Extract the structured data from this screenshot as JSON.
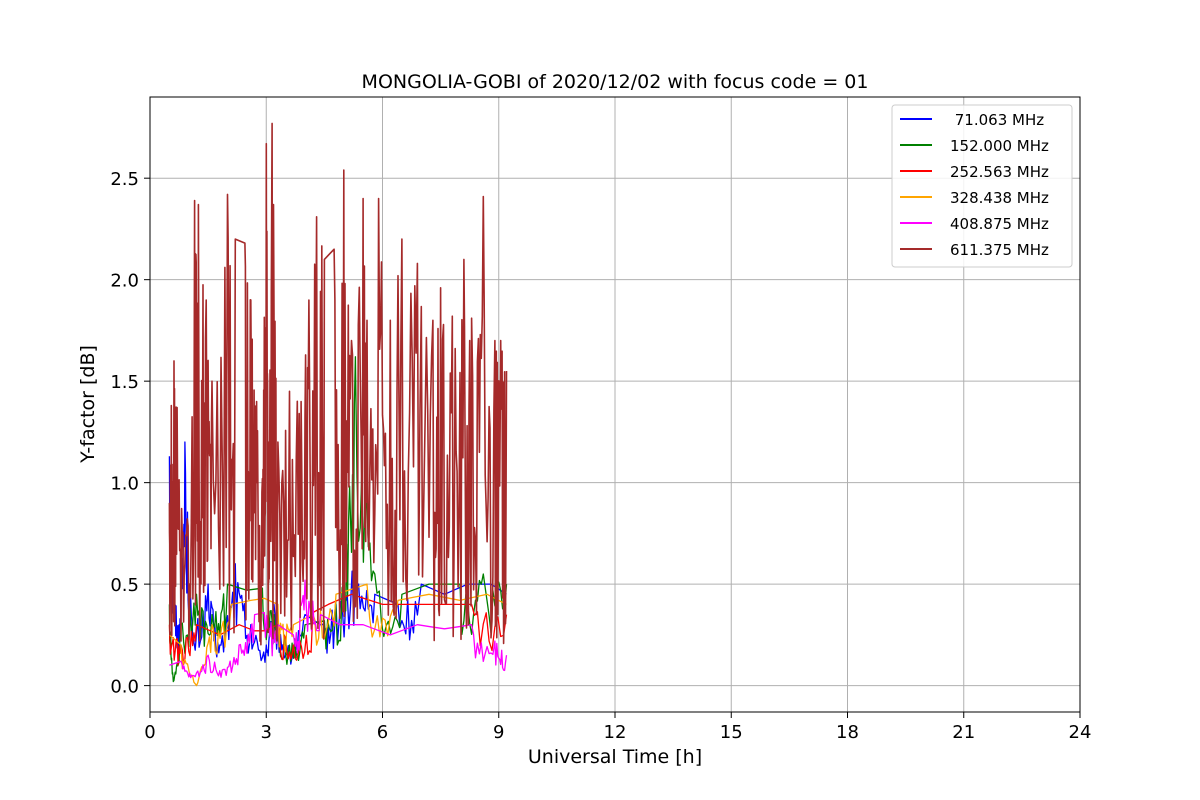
{
  "chart_data": {
    "type": "line",
    "title": "MONGOLIA-GOBI of 2020/12/02 with focus code = 01",
    "xlabel": "Universal Time [h]",
    "ylabel": "Y-factor [dB]",
    "xlim": [
      0,
      24
    ],
    "ylim": [
      -0.13,
      2.9
    ],
    "xticks": [
      0,
      3,
      6,
      9,
      12,
      15,
      18,
      21,
      24
    ],
    "yticks": [
      0.0,
      0.5,
      1.0,
      1.5,
      2.0,
      2.5
    ],
    "xtick_labels": [
      "0",
      "3",
      "6",
      "9",
      "12",
      "15",
      "18",
      "21",
      "24"
    ],
    "ytick_labels": [
      "0.0",
      "0.5",
      "1.0",
      "1.5",
      "2.0",
      "2.5"
    ],
    "grid": true,
    "legend_position": "top-right",
    "series": [
      {
        "name": " 71.063 MHz",
        "color": "#0000ff",
        "points": [
          [
            0.5,
            1.13
          ],
          [
            0.62,
            0.5
          ],
          [
            0.75,
            0.3
          ],
          [
            0.9,
            1.2
          ],
          [
            1.1,
            0.25
          ],
          [
            1.5,
            0.5
          ],
          [
            1.8,
            0.2
          ],
          [
            2.2,
            0.6
          ],
          [
            2.6,
            0.3
          ],
          [
            3.0,
            0.2
          ],
          [
            3.2,
            0.4
          ],
          [
            3.6,
            0.18
          ],
          [
            4.0,
            0.35
          ],
          [
            4.4,
            0.3
          ],
          [
            4.8,
            0.4
          ],
          [
            5.3,
            0.6
          ],
          [
            5.8,
            0.45
          ],
          [
            6.4,
            0.4
          ],
          [
            7.0,
            0.5
          ],
          [
            7.6,
            0.45
          ],
          [
            8.2,
            0.5
          ],
          [
            8.8,
            0.5
          ],
          [
            9.2,
            0.45
          ]
        ]
      },
      {
        "name": "152.000 MHz",
        "color": "#008000",
        "points": [
          [
            0.5,
            0.4
          ],
          [
            0.6,
            0.02
          ],
          [
            0.8,
            0.3
          ],
          [
            1.2,
            0.45
          ],
          [
            1.6,
            0.35
          ],
          [
            2.0,
            0.5
          ],
          [
            2.5,
            0.47
          ],
          [
            2.9,
            0.48
          ],
          [
            3.2,
            0.35
          ],
          [
            3.6,
            0.2
          ],
          [
            4.0,
            0.3
          ],
          [
            4.5,
            0.32
          ],
          [
            5.0,
            0.5
          ],
          [
            5.3,
            1.62
          ],
          [
            5.8,
            0.55
          ],
          [
            6.5,
            0.45
          ],
          [
            7.2,
            0.5
          ],
          [
            8.0,
            0.5
          ],
          [
            8.6,
            0.55
          ],
          [
            9.2,
            0.5
          ]
        ]
      },
      {
        "name": "252.563 MHz",
        "color": "#ff0000",
        "points": [
          [
            0.5,
            0.3
          ],
          [
            0.8,
            0.2
          ],
          [
            1.2,
            0.3
          ],
          [
            1.8,
            0.25
          ],
          [
            2.3,
            0.3
          ],
          [
            2.7,
            0.27
          ],
          [
            2.95,
            0.27
          ],
          [
            3.3,
            0.3
          ],
          [
            3.7,
            0.2
          ],
          [
            4.2,
            0.36
          ],
          [
            4.6,
            0.4
          ],
          [
            5.2,
            0.45
          ],
          [
            6.0,
            0.4
          ],
          [
            6.8,
            0.4
          ],
          [
            7.5,
            0.4
          ],
          [
            8.3,
            0.4
          ],
          [
            9.2,
            0.35
          ]
        ]
      },
      {
        "name": "328.438 MHz",
        "color": "#ffa500",
        "points": [
          [
            0.5,
            0.25
          ],
          [
            0.8,
            0.2
          ],
          [
            1.2,
            0.0
          ],
          [
            1.6,
            0.3
          ],
          [
            2.1,
            0.4
          ],
          [
            2.6,
            0.42
          ],
          [
            2.95,
            0.43
          ],
          [
            3.3,
            0.4
          ],
          [
            3.7,
            0.3
          ],
          [
            4.2,
            0.35
          ],
          [
            4.8,
            0.45
          ],
          [
            5.6,
            0.5
          ],
          [
            6.4,
            0.42
          ],
          [
            7.2,
            0.45
          ],
          [
            8.0,
            0.42
          ],
          [
            8.7,
            0.45
          ],
          [
            9.2,
            0.4
          ]
        ]
      },
      {
        "name": "408.875 MHz",
        "color": "#ff00ff",
        "points": [
          [
            0.5,
            0.1
          ],
          [
            0.8,
            0.12
          ],
          [
            1.1,
            0.05
          ],
          [
            1.5,
            0.15
          ],
          [
            1.9,
            0.08
          ],
          [
            2.3,
            0.2
          ],
          [
            2.7,
            0.35
          ],
          [
            2.95,
            0.36
          ],
          [
            3.3,
            0.3
          ],
          [
            3.7,
            0.25
          ],
          [
            4.0,
            0.52
          ],
          [
            4.4,
            0.35
          ],
          [
            4.9,
            0.3
          ],
          [
            5.5,
            0.3
          ],
          [
            6.2,
            0.25
          ],
          [
            6.9,
            0.3
          ],
          [
            7.6,
            0.28
          ],
          [
            8.3,
            0.3
          ],
          [
            8.9,
            0.22
          ],
          [
            9.2,
            0.15
          ]
        ]
      },
      {
        "name": "611.375 MHz",
        "color": "#a52a2a",
        "points": [
          [
            0.5,
            0.9
          ],
          [
            0.55,
            1.38
          ],
          [
            0.62,
            1.6
          ],
          [
            0.7,
            1.37
          ],
          [
            0.9,
            0.6
          ],
          [
            1.15,
            2.39
          ],
          [
            1.25,
            2.37
          ],
          [
            1.45,
            1.9
          ],
          [
            1.6,
            1.5
          ],
          [
            2.0,
            2.42
          ],
          [
            2.2,
            2.2
          ],
          [
            2.45,
            2.18
          ],
          [
            2.6,
            1.9
          ],
          [
            2.75,
            1.4
          ],
          [
            2.9,
            1.02
          ],
          [
            3.0,
            2.67
          ],
          [
            3.07,
            1.2
          ],
          [
            3.15,
            2.77
          ],
          [
            3.3,
            1.2
          ],
          [
            3.6,
            1.45
          ],
          [
            3.9,
            1.4
          ],
          [
            4.1,
            1.9
          ],
          [
            4.3,
            2.31
          ],
          [
            4.5,
            2.1
          ],
          [
            4.75,
            2.15
          ],
          [
            5.0,
            2.54
          ],
          [
            5.2,
            1.7
          ],
          [
            5.5,
            2.4
          ],
          [
            5.6,
            1.8
          ],
          [
            5.9,
            2.4
          ],
          [
            6.2,
            1.8
          ],
          [
            6.5,
            2.2
          ],
          [
            6.9,
            2.08
          ],
          [
            7.3,
            1.8
          ],
          [
            7.5,
            1.96
          ],
          [
            7.8,
            1.82
          ],
          [
            8.1,
            2.1
          ],
          [
            8.3,
            1.81
          ],
          [
            8.6,
            2.41
          ],
          [
            8.9,
            1.7
          ],
          [
            9.05,
            1.7
          ],
          [
            9.2,
            1.55
          ]
        ]
      }
    ]
  }
}
